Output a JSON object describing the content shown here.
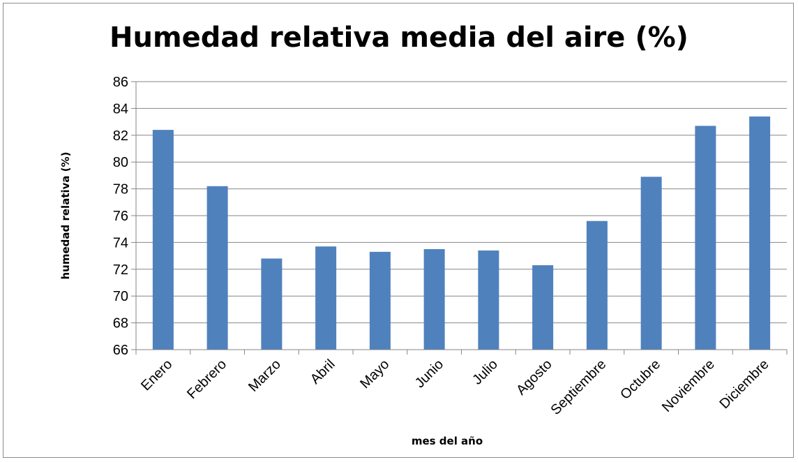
{
  "chart_data": {
    "type": "bar",
    "title": "Humedad relativa media del aire (%)",
    "xlabel": "mes del año",
    "ylabel": "humedad relativa (%)",
    "categories": [
      "Enero",
      "Febrero",
      "Marzo",
      "Abril",
      "Mayo",
      "Junio",
      "Julio",
      "Agosto",
      "Septiembre",
      "Octubre",
      "Noviembre",
      "Diciembre"
    ],
    "values": [
      82.4,
      78.2,
      72.8,
      73.7,
      73.3,
      73.5,
      73.4,
      72.3,
      75.6,
      78.9,
      82.7,
      83.4
    ],
    "ylim": [
      66,
      86
    ],
    "yticks": [
      66,
      68,
      70,
      72,
      74,
      76,
      78,
      80,
      82,
      84,
      86
    ],
    "grid": true,
    "bar_color": "#4f81bd",
    "grid_color": "#868686"
  }
}
